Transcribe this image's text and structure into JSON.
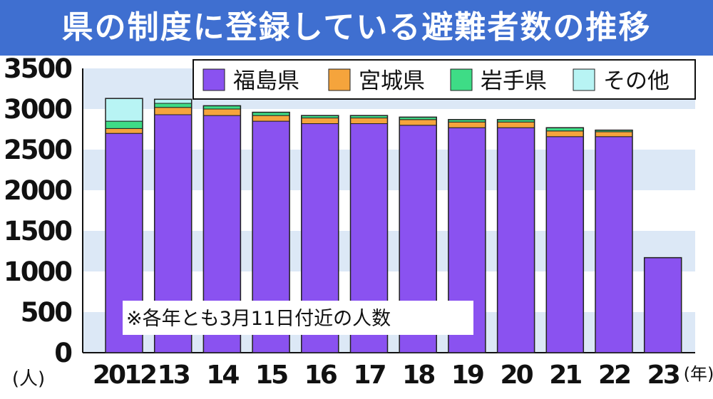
{
  "title": "県の制度に登録している避難者数の推移",
  "note": "※各年とも3月11日付近の人数",
  "colors": {
    "title_bg": "#3f6fd0",
    "plot_band": "#dce8f6",
    "fukushima": "#8a52f0",
    "miyagi": "#f5a43c",
    "iwate": "#3edc86",
    "other": "#b8f4f4"
  },
  "chart_data": {
    "type": "bar",
    "stacked": true,
    "categories": [
      "2012",
      "13",
      "14",
      "15",
      "16",
      "17",
      "18",
      "19",
      "20",
      "21",
      "22",
      "23"
    ],
    "series": [
      {
        "name": "福島県",
        "color": "#8a52f0",
        "values": [
          2700,
          2930,
          2920,
          2850,
          2820,
          2820,
          2800,
          2770,
          2770,
          2660,
          2660,
          1170
        ]
      },
      {
        "name": "宮城県",
        "color": "#f5a43c",
        "values": [
          60,
          90,
          80,
          70,
          70,
          70,
          70,
          70,
          70,
          70,
          60,
          0
        ]
      },
      {
        "name": "岩手県",
        "color": "#3edc86",
        "values": [
          90,
          50,
          40,
          40,
          30,
          30,
          30,
          30,
          30,
          40,
          20,
          0
        ]
      },
      {
        "name": "その他",
        "color": "#b8f4f4",
        "values": [
          280,
          50,
          0,
          0,
          0,
          0,
          0,
          0,
          0,
          0,
          0,
          0
        ]
      }
    ],
    "ylim": [
      0,
      3500
    ],
    "yticks": [
      "0",
      "500",
      "1000",
      "1500",
      "2000",
      "2500",
      "3000",
      "3500"
    ],
    "ylabel": "(人)",
    "xunit": "(年)",
    "grid": "horizontal bands",
    "legend_position": "top-right"
  }
}
